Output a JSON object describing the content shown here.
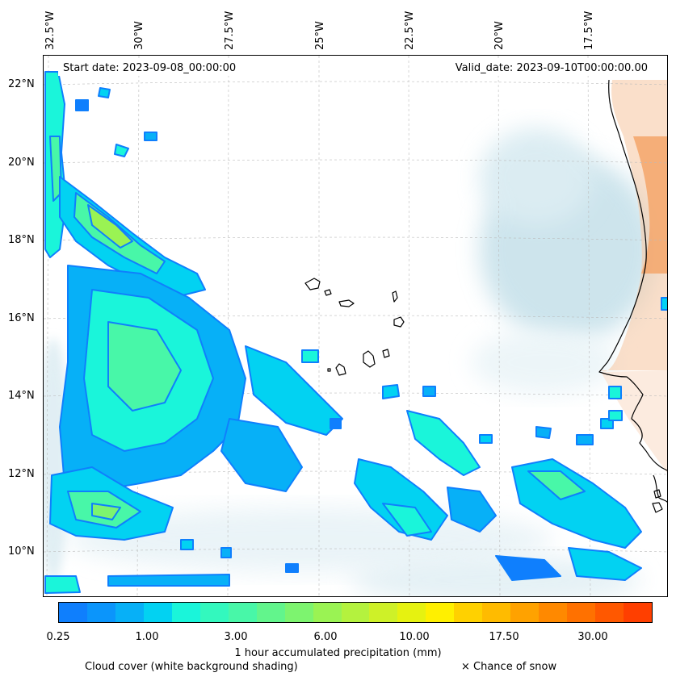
{
  "map": {
    "start_date": "Start date: 2023-09-08_00:00:00",
    "valid_date": "Valid_date: 2023-09-10T00:00:00.00",
    "longitude_labels": [
      "32.5°W",
      "30°W",
      "27.5°W",
      "25°W",
      "22.5°W",
      "20°W",
      "17.5°W"
    ],
    "latitude_labels": [
      "22°N",
      "20°N",
      "18°N",
      "16°N",
      "14°N",
      "12°N",
      "10°N"
    ],
    "colors": {
      "coastline": "#000000",
      "land_fill": "#f4a66a",
      "cloud_shading": "#bcdbe6",
      "gridline": "#bbbbbb"
    }
  },
  "colorbar": {
    "label": "1 hour accumulated precipitation (mm)",
    "tick_labels": [
      "0.25",
      "1.00",
      "3.00",
      "6.00",
      "10.00",
      "17.50",
      "30.00"
    ],
    "colors": [
      "#0f7ffd",
      "#0b95fb",
      "#07b0f7",
      "#02d2f2",
      "#1af5da",
      "#33f8be",
      "#48f7a8",
      "#62f58c",
      "#7df46f",
      "#9af353",
      "#b4f23e",
      "#cef128",
      "#e6f210",
      "#fff000",
      "#ffd100",
      "#ffbb00",
      "#ffa200",
      "#ff8900",
      "#ff7100",
      "#ff5800",
      "#ff3f00"
    ]
  },
  "legend": {
    "cloud_cover": "Cloud cover (white background shading)",
    "snow": "× Chance of snow"
  }
}
